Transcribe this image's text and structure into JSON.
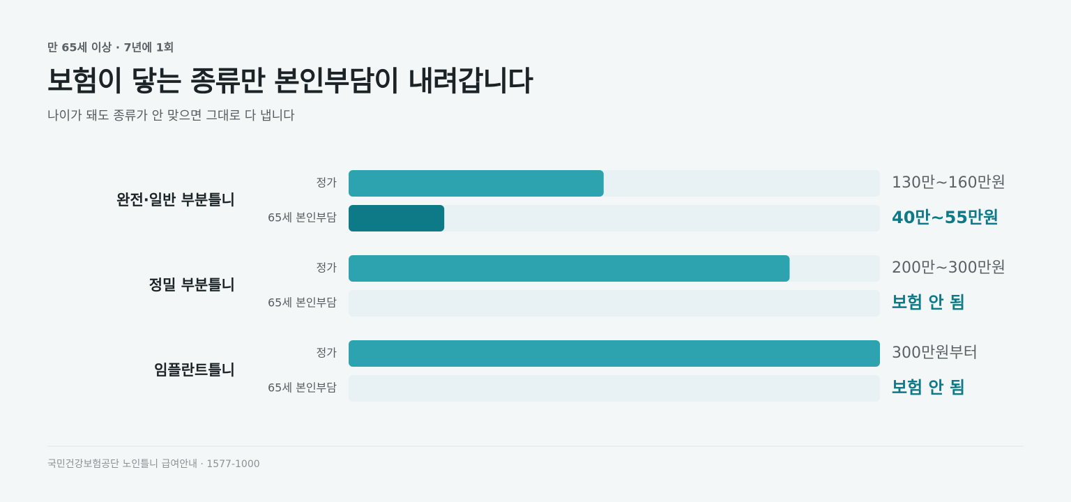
{
  "chart_data": {
    "type": "bar",
    "orientation": "horizontal",
    "eyebrow": "만 65세 이상 · 7년에 1회",
    "title": "보험이 닿는 종류만 본인부담이 내려갑니다",
    "subtitle": "나이가 돼도 종류가 안 맞으면 그대로 다 냅니다",
    "categories": [
      "완전·일반 부분틀니",
      "정밀 부분틀니",
      "임플란트틀니"
    ],
    "xlim": [
      0,
      300
    ],
    "series": [
      {
        "name": "정가",
        "color": "#2ca3ae",
        "values": [
          144,
          249,
          300
        ],
        "value_labels": [
          "130만~160만원",
          "200만~300만원",
          "300만원부터"
        ]
      },
      {
        "name": "65세 본인부담",
        "color": "#0e7a87",
        "values": [
          54,
          null,
          null
        ],
        "value_labels": [
          "40만~55만원",
          "보험 안 됨",
          "보험 안 됨"
        ]
      }
    ],
    "source": "국민건강보험공단 노인틀니 급여안내 · 1577-1000"
  }
}
